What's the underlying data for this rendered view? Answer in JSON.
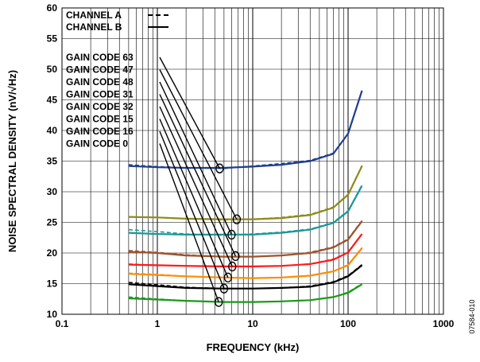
{
  "chart_data": {
    "type": "line",
    "xlabel": "FREQUENCY (kHz)",
    "ylabel": "NOISE SPECTRAL DENSITY (nV/√Hz)",
    "xscale": "log",
    "xlim": [
      0.1,
      1000
    ],
    "ylim": [
      10,
      60
    ],
    "x_ticks": [
      "0.1",
      "1",
      "10",
      "100",
      "1000"
    ],
    "y_ticks": [
      "10",
      "15",
      "20",
      "25",
      "30",
      "35",
      "40",
      "45",
      "50",
      "55",
      "60"
    ],
    "grid": true,
    "legend": [
      {
        "label": "CHANNEL A",
        "style": "dashed"
      },
      {
        "label": "CHANNEL B",
        "style": "solid"
      }
    ],
    "figure_id": "07584-010",
    "x": [
      0.5,
      1,
      2,
      5,
      10,
      20,
      40,
      70,
      100,
      140
    ],
    "series": [
      {
        "name": "GAIN CODE 63",
        "color": "#1f3f8f",
        "marker": [
          4.5,
          33.8
        ],
        "values": [
          34.2,
          34.0,
          33.9,
          33.9,
          34.1,
          34.4,
          35.0,
          36.2,
          39.5,
          46.5
        ],
        "values_a": [
          34.4,
          34.1,
          33.9,
          33.8,
          34.2,
          34.6,
          35.1,
          36.3,
          39.4,
          46.4
        ]
      },
      {
        "name": "GAIN CODE 47",
        "color": "#8c8c1a",
        "marker": [
          6.8,
          25.5
        ],
        "values": [
          25.9,
          25.8,
          25.6,
          25.5,
          25.5,
          25.7,
          26.2,
          27.4,
          29.5,
          34.2
        ],
        "values_a": [
          25.9,
          25.8,
          25.6,
          25.4,
          25.5,
          25.8,
          26.3,
          27.5,
          29.6,
          34.3
        ]
      },
      {
        "name": "GAIN CODE 48",
        "color": "#1a9898",
        "marker": [
          6.0,
          23.0
        ],
        "values": [
          23.3,
          23.1,
          23.0,
          23.0,
          23.0,
          23.3,
          23.8,
          24.9,
          26.8,
          31.0
        ],
        "values_a": [
          23.8,
          23.5,
          23.1,
          22.9,
          23.1,
          23.4,
          23.9,
          25.0,
          26.9,
          31.1
        ]
      },
      {
        "name": "GAIN CODE 31",
        "color": "#a0522d",
        "marker": [
          6.6,
          19.5
        ],
        "values": [
          20.2,
          20.0,
          19.6,
          19.4,
          19.4,
          19.6,
          20.0,
          20.9,
          22.2,
          25.2
        ],
        "values_a": [
          20.4,
          20.1,
          19.7,
          19.4,
          19.4,
          19.6,
          20.1,
          21.0,
          22.3,
          25.3
        ]
      },
      {
        "name": "GAIN CODE 32",
        "color": "#ff1a1a",
        "marker": [
          6.1,
          17.8
        ],
        "values": [
          18.1,
          18.0,
          17.9,
          17.8,
          17.8,
          17.9,
          18.2,
          18.9,
          20.1,
          23.1
        ],
        "values_a": [
          18.2,
          18.0,
          17.9,
          17.8,
          17.8,
          17.9,
          18.2,
          19.0,
          20.1,
          23.1
        ]
      },
      {
        "name": "GAIN CODE 15",
        "color": "#ff8c00",
        "marker": [
          5.5,
          16.0
        ],
        "values": [
          16.6,
          16.4,
          16.2,
          16.0,
          15.9,
          16.0,
          16.3,
          17.0,
          18.0,
          20.8
        ],
        "values_a": [
          16.7,
          16.5,
          16.2,
          16.0,
          15.9,
          16.0,
          16.3,
          17.0,
          18.1,
          20.9
        ]
      },
      {
        "name": "GAIN CODE 16",
        "color": "#000000",
        "marker": [
          5.0,
          14.2
        ],
        "values": [
          14.9,
          14.6,
          14.3,
          14.2,
          14.2,
          14.3,
          14.5,
          15.2,
          16.2,
          18.0
        ],
        "values_a": [
          15.2,
          14.8,
          14.4,
          14.2,
          14.2,
          14.3,
          14.6,
          15.3,
          16.3,
          18.1
        ]
      },
      {
        "name": "GAIN CODE 0",
        "color": "#1a9a1a",
        "marker": [
          4.4,
          12.0
        ],
        "values": [
          12.6,
          12.4,
          12.2,
          12.0,
          12.0,
          12.1,
          12.3,
          12.8,
          13.5,
          14.9
        ],
        "values_a": [
          12.8,
          12.5,
          12.2,
          12.0,
          12.0,
          12.1,
          12.3,
          12.8,
          13.6,
          15.0
        ]
      }
    ]
  }
}
